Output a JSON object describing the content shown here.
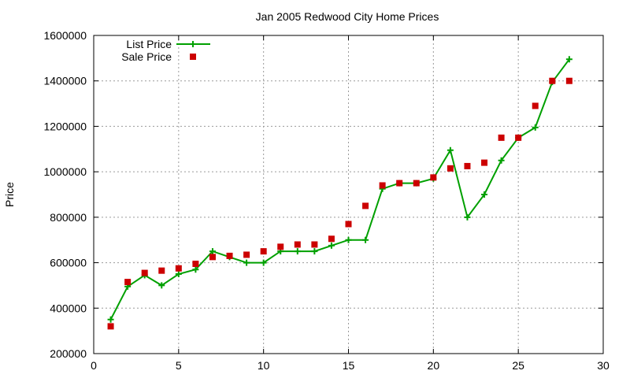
{
  "chart_data": {
    "type": "line",
    "title": "Jan 2005 Redwood City Home Prices",
    "xlabel": "",
    "ylabel": "Price",
    "xlim": [
      0,
      30
    ],
    "ylim": [
      200000,
      1600000
    ],
    "xticks": [
      0,
      5,
      10,
      15,
      20,
      25,
      30
    ],
    "yticks": [
      200000,
      400000,
      600000,
      800000,
      1000000,
      1200000,
      1400000,
      1600000
    ],
    "grid": true,
    "legend_position": "top-left",
    "x": [
      1,
      2,
      3,
      4,
      5,
      6,
      7,
      8,
      9,
      10,
      11,
      12,
      13,
      14,
      15,
      16,
      17,
      18,
      19,
      20,
      21,
      22,
      23,
      24,
      25,
      26,
      27,
      28
    ],
    "series": [
      {
        "name": "List Price",
        "style": "line-plus",
        "color": "#00a000",
        "values": [
          350000,
          495000,
          545000,
          500000,
          550000,
          570000,
          650000,
          625000,
          600000,
          600000,
          650000,
          650000,
          650000,
          675000,
          700000,
          700000,
          925000,
          950000,
          950000,
          970000,
          1095000,
          800000,
          900000,
          1050000,
          1150000,
          1195000,
          1395000,
          1495000
        ]
      },
      {
        "name": "Sale Price",
        "style": "square",
        "color": "#cc0000",
        "values": [
          320000,
          515000,
          555000,
          565000,
          575000,
          595000,
          625000,
          630000,
          635000,
          650000,
          670000,
          680000,
          680000,
          705000,
          770000,
          850000,
          940000,
          950000,
          950000,
          975000,
          1015000,
          1025000,
          1040000,
          1150000,
          1150000,
          1290000,
          1400000,
          1400000
        ]
      }
    ]
  }
}
